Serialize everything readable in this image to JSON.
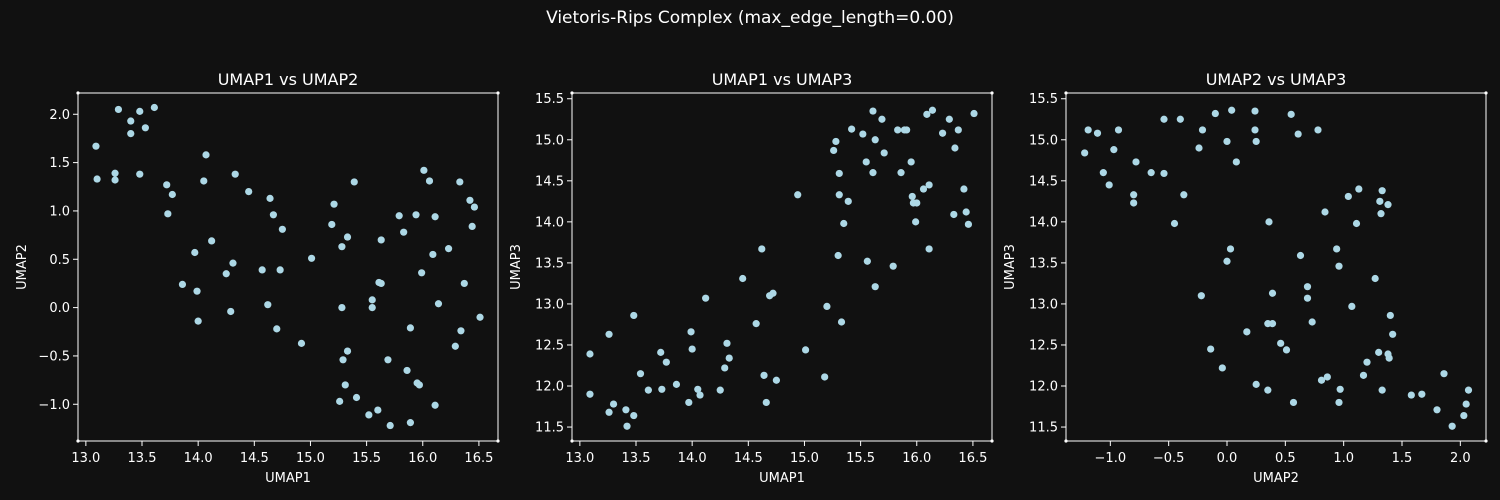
{
  "suptitle": "Vietoris-Rips Complex (max_edge_length=0.00)",
  "colors": {
    "background": "#111111",
    "axes": "#ffffff",
    "text": "#ffffff",
    "point": "#add8e6"
  },
  "chart_data": [
    {
      "type": "scatter",
      "title": "UMAP1 vs UMAP2",
      "xlabel": "UMAP1",
      "ylabel": "UMAP2",
      "xlim": [
        12.93,
        16.67
      ],
      "ylim": [
        -1.38,
        2.22
      ],
      "xticks": [
        13.0,
        13.5,
        14.0,
        14.5,
        15.0,
        15.5,
        16.0,
        16.5
      ],
      "yticks": [
        -1.0,
        -0.5,
        0.0,
        0.5,
        1.0,
        1.5,
        2.0
      ],
      "xtick_labels": [
        "13.0",
        "13.5",
        "14.0",
        "14.5",
        "15.0",
        "15.5",
        "16.0",
        "16.5"
      ],
      "ytick_labels": [
        "−1.0",
        "−0.5",
        "0.0",
        "0.5",
        "1.0",
        "1.5",
        "2.0"
      ],
      "points": [
        [
          13.09,
          1.67
        ],
        [
          13.1,
          1.33
        ],
        [
          13.26,
          1.39
        ],
        [
          13.26,
          1.32
        ],
        [
          13.29,
          2.05
        ],
        [
          13.4,
          1.93
        ],
        [
          13.4,
          1.8
        ],
        [
          13.48,
          2.03
        ],
        [
          13.48,
          1.38
        ],
        [
          13.53,
          1.86
        ],
        [
          13.61,
          2.07
        ],
        [
          13.72,
          1.27
        ],
        [
          13.73,
          0.97
        ],
        [
          13.77,
          1.17
        ],
        [
          13.86,
          0.24
        ],
        [
          13.97,
          0.57
        ],
        [
          13.99,
          0.17
        ],
        [
          14.0,
          -0.14
        ],
        [
          14.05,
          1.31
        ],
        [
          14.07,
          1.58
        ],
        [
          14.12,
          0.69
        ],
        [
          14.25,
          0.35
        ],
        [
          14.29,
          -0.04
        ],
        [
          14.31,
          0.46
        ],
        [
          14.33,
          1.38
        ],
        [
          14.45,
          1.2
        ],
        [
          14.57,
          0.39
        ],
        [
          14.62,
          0.03
        ],
        [
          14.64,
          1.13
        ],
        [
          14.67,
          0.96
        ],
        [
          14.7,
          -0.22
        ],
        [
          14.73,
          0.39
        ],
        [
          14.75,
          0.81
        ],
        [
          14.92,
          -0.37
        ],
        [
          15.01,
          0.51
        ],
        [
          15.19,
          0.86
        ],
        [
          15.21,
          1.07
        ],
        [
          15.26,
          -0.97
        ],
        [
          15.28,
          0.0
        ],
        [
          15.28,
          0.63
        ],
        [
          15.29,
          -0.54
        ],
        [
          15.31,
          -0.8
        ],
        [
          15.33,
          -0.45
        ],
        [
          15.33,
          0.73
        ],
        [
          15.39,
          1.3
        ],
        [
          15.41,
          -0.93
        ],
        [
          15.52,
          -1.11
        ],
        [
          15.55,
          0.08
        ],
        [
          15.55,
          0.0
        ],
        [
          15.6,
          -1.06
        ],
        [
          15.61,
          0.26
        ],
        [
          15.63,
          0.25
        ],
        [
          15.63,
          0.7
        ],
        [
          15.69,
          -0.54
        ],
        [
          15.71,
          -1.22
        ],
        [
          15.79,
          0.95
        ],
        [
          15.83,
          0.78
        ],
        [
          15.86,
          -0.65
        ],
        [
          15.89,
          -0.21
        ],
        [
          15.89,
          -1.19
        ],
        [
          15.94,
          0.96
        ],
        [
          15.95,
          -0.78
        ],
        [
          15.97,
          -0.8
        ],
        [
          15.99,
          0.36
        ],
        [
          16.01,
          1.42
        ],
        [
          16.06,
          1.31
        ],
        [
          16.09,
          0.55
        ],
        [
          16.11,
          -1.01
        ],
        [
          16.11,
          0.94
        ],
        [
          16.14,
          0.04
        ],
        [
          16.23,
          0.61
        ],
        [
          16.29,
          -0.4
        ],
        [
          16.33,
          1.3
        ],
        [
          16.34,
          -0.24
        ],
        [
          16.37,
          0.25
        ],
        [
          16.42,
          1.11
        ],
        [
          16.44,
          0.84
        ],
        [
          16.46,
          1.04
        ],
        [
          16.51,
          -0.1
        ]
      ]
    },
    {
      "type": "scatter",
      "title": "UMAP1 vs UMAP3",
      "xlabel": "UMAP1",
      "ylabel": "UMAP3",
      "xlim": [
        12.93,
        16.67
      ],
      "ylim": [
        11.33,
        15.57
      ],
      "xticks": [
        13.0,
        13.5,
        14.0,
        14.5,
        15.0,
        15.5,
        16.0,
        16.5
      ],
      "yticks": [
        11.5,
        12.0,
        12.5,
        13.0,
        13.5,
        14.0,
        14.5,
        15.0,
        15.5
      ],
      "xtick_labels": [
        "13.0",
        "13.5",
        "14.0",
        "14.5",
        "15.0",
        "15.5",
        "16.0",
        "16.5"
      ],
      "ytick_labels": [
        "11.5",
        "12.0",
        "12.5",
        "13.0",
        "13.5",
        "14.0",
        "14.5",
        "15.0",
        "15.5"
      ],
      "points": [
        [
          13.09,
          12.39
        ],
        [
          13.09,
          11.9
        ],
        [
          13.26,
          11.68
        ],
        [
          13.26,
          12.63
        ],
        [
          13.3,
          11.78
        ],
        [
          13.41,
          11.71
        ],
        [
          13.42,
          11.51
        ],
        [
          13.48,
          11.64
        ],
        [
          13.48,
          12.86
        ],
        [
          13.54,
          12.15
        ],
        [
          13.61,
          11.95
        ],
        [
          13.72,
          12.41
        ],
        [
          13.73,
          11.96
        ],
        [
          13.77,
          12.29
        ],
        [
          13.86,
          12.02
        ],
        [
          13.97,
          11.8
        ],
        [
          13.99,
          12.66
        ],
        [
          14.0,
          12.45
        ],
        [
          14.05,
          11.96
        ],
        [
          14.07,
          11.89
        ],
        [
          14.12,
          13.07
        ],
        [
          14.25,
          11.95
        ],
        [
          14.29,
          12.22
        ],
        [
          14.31,
          12.52
        ],
        [
          14.33,
          12.34
        ],
        [
          14.45,
          13.31
        ],
        [
          14.57,
          12.76
        ],
        [
          14.62,
          13.67
        ],
        [
          14.64,
          12.13
        ],
        [
          14.66,
          11.8
        ],
        [
          14.69,
          13.1
        ],
        [
          14.72,
          13.13
        ],
        [
          14.75,
          12.07
        ],
        [
          14.94,
          14.33
        ],
        [
          15.01,
          12.44
        ],
        [
          15.18,
          12.11
        ],
        [
          15.2,
          12.97
        ],
        [
          15.26,
          14.87
        ],
        [
          15.28,
          14.98
        ],
        [
          15.3,
          13.59
        ],
        [
          15.31,
          14.59
        ],
        [
          15.31,
          14.33
        ],
        [
          15.33,
          12.78
        ],
        [
          15.35,
          13.98
        ],
        [
          15.39,
          14.25
        ],
        [
          15.42,
          15.13
        ],
        [
          15.52,
          15.07
        ],
        [
          15.55,
          14.73
        ],
        [
          15.56,
          13.52
        ],
        [
          15.61,
          14.6
        ],
        [
          15.61,
          15.35
        ],
        [
          15.63,
          13.21
        ],
        [
          15.63,
          15.0
        ],
        [
          15.69,
          15.25
        ],
        [
          15.71,
          14.84
        ],
        [
          15.79,
          13.46
        ],
        [
          15.83,
          15.12
        ],
        [
          15.86,
          14.6
        ],
        [
          15.89,
          15.12
        ],
        [
          15.91,
          15.12
        ],
        [
          15.95,
          14.73
        ],
        [
          15.96,
          14.31
        ],
        [
          15.97,
          14.23
        ],
        [
          15.99,
          14.0
        ],
        [
          16.0,
          14.23
        ],
        [
          16.06,
          14.4
        ],
        [
          16.09,
          15.31
        ],
        [
          16.11,
          14.45
        ],
        [
          16.11,
          13.67
        ],
        [
          16.14,
          15.36
        ],
        [
          16.23,
          15.08
        ],
        [
          16.29,
          15.25
        ],
        [
          16.33,
          14.09
        ],
        [
          16.34,
          14.9
        ],
        [
          16.37,
          15.12
        ],
        [
          16.42,
          14.4
        ],
        [
          16.44,
          14.12
        ],
        [
          16.46,
          13.97
        ],
        [
          16.51,
          15.32
        ]
      ]
    },
    {
      "type": "scatter",
      "title": "UMAP2 vs UMAP3",
      "xlabel": "UMAP2",
      "ylabel": "UMAP3",
      "xlim": [
        -1.38,
        2.22
      ],
      "ylim": [
        11.33,
        15.57
      ],
      "xticks": [
        -1.0,
        -0.5,
        0.0,
        0.5,
        1.0,
        1.5,
        2.0
      ],
      "yticks": [
        11.5,
        12.0,
        12.5,
        13.0,
        13.5,
        14.0,
        14.5,
        15.0,
        15.5
      ],
      "xtick_labels": [
        "−1.0",
        "−0.5",
        "0.0",
        "0.5",
        "1.0",
        "1.5",
        "2.0"
      ],
      "ytick_labels": [
        "11.5",
        "12.0",
        "12.5",
        "13.0",
        "13.5",
        "14.0",
        "14.5",
        "15.0",
        "15.5"
      ],
      "points": [
        [
          -1.22,
          14.84
        ],
        [
          -1.19,
          15.12
        ],
        [
          -1.11,
          15.08
        ],
        [
          -1.06,
          14.6
        ],
        [
          -1.01,
          14.45
        ],
        [
          -0.97,
          14.88
        ],
        [
          -0.93,
          15.12
        ],
        [
          -0.8,
          14.33
        ],
        [
          -0.8,
          14.23
        ],
        [
          -0.78,
          14.73
        ],
        [
          -0.65,
          14.6
        ],
        [
          -0.54,
          14.59
        ],
        [
          -0.54,
          15.25
        ],
        [
          -0.45,
          13.98
        ],
        [
          -0.4,
          15.25
        ],
        [
          -0.37,
          14.33
        ],
        [
          -0.24,
          14.9
        ],
        [
          -0.22,
          13.1
        ],
        [
          -0.21,
          15.12
        ],
        [
          -0.14,
          12.45
        ],
        [
          -0.1,
          15.32
        ],
        [
          -0.04,
          12.22
        ],
        [
          0.0,
          14.98
        ],
        [
          0.0,
          13.52
        ],
        [
          0.03,
          13.67
        ],
        [
          0.04,
          15.36
        ],
        [
          0.08,
          14.73
        ],
        [
          0.17,
          12.66
        ],
        [
          0.24,
          15.35
        ],
        [
          0.24,
          15.12
        ],
        [
          0.25,
          14.98
        ],
        [
          0.25,
          12.02
        ],
        [
          0.35,
          11.95
        ],
        [
          0.36,
          14.0
        ],
        [
          0.39,
          12.76
        ],
        [
          0.39,
          13.13
        ],
        [
          0.46,
          12.52
        ],
        [
          0.51,
          12.44
        ],
        [
          0.55,
          15.31
        ],
        [
          0.57,
          11.8
        ],
        [
          0.61,
          15.07
        ],
        [
          0.63,
          13.59
        ],
        [
          0.69,
          13.21
        ],
        [
          0.69,
          13.07
        ],
        [
          0.73,
          12.78
        ],
        [
          0.78,
          15.12
        ],
        [
          0.81,
          12.07
        ],
        [
          0.84,
          14.12
        ],
        [
          0.86,
          12.11
        ],
        [
          0.94,
          13.67
        ],
        [
          0.96,
          13.46
        ],
        [
          0.96,
          11.8
        ],
        [
          0.97,
          11.96
        ],
        [
          1.04,
          14.31
        ],
        [
          1.07,
          12.97
        ],
        [
          1.11,
          13.98
        ],
        [
          1.13,
          14.4
        ],
        [
          1.17,
          12.13
        ],
        [
          1.2,
          12.29
        ],
        [
          1.27,
          13.31
        ],
        [
          1.3,
          12.41
        ],
        [
          1.31,
          14.25
        ],
        [
          1.32,
          14.1
        ],
        [
          1.33,
          14.38
        ],
        [
          1.33,
          11.95
        ],
        [
          1.38,
          12.39
        ],
        [
          1.39,
          12.34
        ],
        [
          1.4,
          12.86
        ],
        [
          1.42,
          12.63
        ],
        [
          1.58,
          11.89
        ],
        [
          1.67,
          11.9
        ],
        [
          1.8,
          11.71
        ],
        [
          1.86,
          12.15
        ],
        [
          1.93,
          11.51
        ],
        [
          2.03,
          11.64
        ],
        [
          2.05,
          11.78
        ],
        [
          2.07,
          11.95
        ],
        [
          1.38,
          14.21
        ],
        [
          0.35,
          12.76
        ]
      ]
    }
  ]
}
